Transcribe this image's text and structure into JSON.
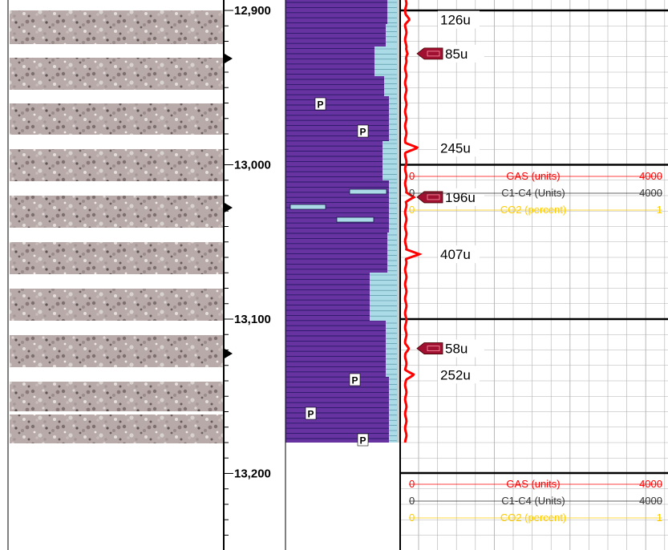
{
  "depth_track": {
    "labels": [
      "12,900",
      "13,000",
      "13,100",
      "13,200"
    ],
    "depths_ft": [
      12900,
      13000,
      13100,
      13200
    ]
  },
  "lithology": {
    "main_color": "#6633a0",
    "stripe_color": "#2a1a66",
    "limestone_color": "#aadbe6",
    "porosity_marker": "P"
  },
  "gas_readings": [
    {
      "label": "126u",
      "depth_ft": 12906,
      "show_marker": false
    },
    {
      "label": "85u",
      "depth_ft": 12928,
      "show_marker": true
    },
    {
      "label": "245u",
      "depth_ft": 12989,
      "show_marker": false
    },
    {
      "label": "196u",
      "depth_ft": 13021,
      "show_marker": true
    },
    {
      "label": "407u",
      "depth_ft": 13058,
      "show_marker": false
    },
    {
      "label": "58u",
      "depth_ft": 13119,
      "show_marker": true
    },
    {
      "label": "252u",
      "depth_ft": 13136,
      "show_marker": false
    }
  ],
  "legends": [
    {
      "rows": [
        {
          "min": "0",
          "name": "GAS (units)",
          "max": "4000",
          "color": "#ff0000"
        },
        {
          "min": "0",
          "name": "C1-C4 (Units)",
          "max": "4000",
          "color": "#333333"
        },
        {
          "min": "0",
          "name": "CO2 (percent)",
          "max": "1",
          "color": "#ffcc00"
        }
      ]
    },
    {
      "rows": [
        {
          "min": "0",
          "name": "GAS (units)",
          "max": "4000",
          "color": "#ff0000"
        },
        {
          "min": "0",
          "name": "C1-C4 (Units)",
          "max": "4000",
          "color": "#333333"
        },
        {
          "min": "0",
          "name": "CO2 (percent)",
          "max": "1",
          "color": "#ffcc00"
        }
      ]
    }
  ],
  "colors": {
    "gas_curve": "#ff0000",
    "grid": "#b0b0b0",
    "show_marker": "#a01030"
  }
}
